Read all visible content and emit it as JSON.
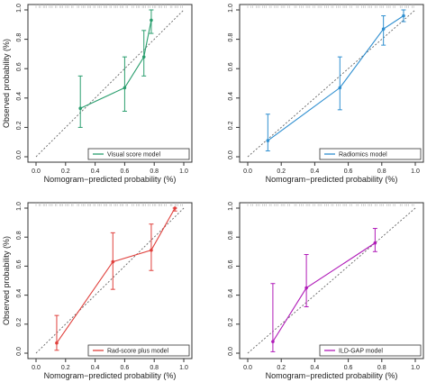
{
  "chart_data": [
    {
      "type": "line",
      "xlabel": "Nomogram−predicted probability (%)",
      "ylabel": "Observed probability (%)",
      "xlim": [
        0,
        1
      ],
      "ylim": [
        0,
        1
      ],
      "x_ticks": [
        "0.0",
        "0.2",
        "0.4",
        "0.6",
        "0.8",
        "1.0"
      ],
      "y_ticks": [
        "0.0",
        "0.2",
        "0.4",
        "0.6",
        "0.8",
        "1.0"
      ],
      "grid": false,
      "legend_position": "bottom-right",
      "series": [
        {
          "name": "Visual score model",
          "color": "#2a9e6e",
          "x": [
            0.3,
            0.6,
            0.73,
            0.78
          ],
          "y": [
            0.33,
            0.47,
            0.68,
            0.93
          ],
          "y_low": [
            0.2,
            0.31,
            0.55,
            0.84
          ],
          "y_high": [
            0.55,
            0.68,
            0.86,
            1.0
          ]
        }
      ]
    },
    {
      "type": "line",
      "xlabel": "Nomogram−predicted probability (%)",
      "ylabel": "",
      "xlim": [
        0,
        1
      ],
      "ylim": [
        0,
        1
      ],
      "x_ticks": [
        "0.0",
        "0.2",
        "0.4",
        "0.6",
        "0.8",
        "1.0"
      ],
      "y_ticks": [
        "0.0",
        "0.2",
        "0.4",
        "0.6",
        "0.8",
        "1.0"
      ],
      "grid": false,
      "legend_position": "bottom-right",
      "series": [
        {
          "name": "Radiomics model",
          "color": "#2f8fd0",
          "x": [
            0.12,
            0.55,
            0.81,
            0.93
          ],
          "y": [
            0.11,
            0.47,
            0.87,
            0.96
          ],
          "y_low": [
            0.04,
            0.32,
            0.76,
            0.92
          ],
          "y_high": [
            0.29,
            0.68,
            0.96,
            1.0
          ]
        }
      ]
    },
    {
      "type": "line",
      "xlabel": "Nomogram−predicted probability (%)",
      "ylabel": "Observed probability (%)",
      "xlim": [
        0,
        1
      ],
      "ylim": [
        0,
        1
      ],
      "x_ticks": [
        "0.0",
        "0.2",
        "0.4",
        "0.6",
        "0.8",
        "1.0"
      ],
      "y_ticks": [
        "0.0",
        "0.2",
        "0.4",
        "0.6",
        "0.8",
        "1.0"
      ],
      "grid": false,
      "legend_position": "bottom-right",
      "series": [
        {
          "name": "Rad-score plus model",
          "color": "#e0403c",
          "x": [
            0.14,
            0.52,
            0.78,
            0.94
          ],
          "y": [
            0.07,
            0.63,
            0.71,
            1.0
          ],
          "y_low": [
            0.02,
            0.44,
            0.57,
            0.98
          ],
          "y_high": [
            0.26,
            0.83,
            0.89,
            1.0
          ]
        }
      ]
    },
    {
      "type": "line",
      "xlabel": "Nomogram−predicted probability (%)",
      "ylabel": "",
      "xlim": [
        0,
        1
      ],
      "ylim": [
        0,
        1
      ],
      "x_ticks": [
        "0.0",
        "0.2",
        "0.4",
        "0.6",
        "0.8",
        "1.0"
      ],
      "y_ticks": [
        "0.0",
        "0.2",
        "0.4",
        "0.6",
        "0.8",
        "1.0"
      ],
      "grid": false,
      "legend_position": "bottom-right",
      "series": [
        {
          "name": "ILD-GAP model",
          "color": "#b01ab8",
          "x": [
            0.15,
            0.35,
            0.76
          ],
          "y": [
            0.08,
            0.45,
            0.76
          ],
          "y_low": [
            0.01,
            0.32,
            0.7
          ],
          "y_high": [
            0.48,
            0.68,
            0.86
          ]
        }
      ]
    }
  ]
}
